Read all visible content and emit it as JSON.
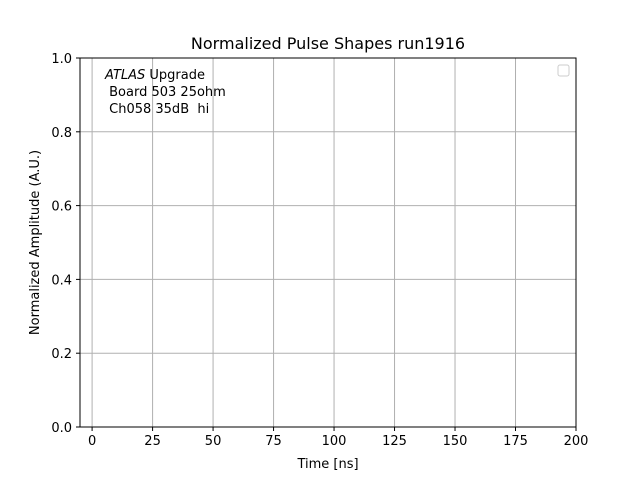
{
  "chart_data": {
    "type": "line",
    "title": "Normalized Pulse Shapes run1916",
    "xlabel": "Time [ns]",
    "ylabel": "Normalized Amplitude (A.U.)",
    "xlim": [
      -5,
      200
    ],
    "ylim": [
      0.0,
      1.0
    ],
    "xticks": [
      0,
      25,
      50,
      75,
      100,
      125,
      150,
      175,
      200
    ],
    "xtick_labels": [
      "0",
      "25",
      "50",
      "75",
      "100",
      "125",
      "150",
      "175",
      "200"
    ],
    "yticks": [
      0.0,
      0.2,
      0.4,
      0.6,
      0.8,
      1.0
    ],
    "ytick_labels": [
      "0.0",
      "0.2",
      "0.4",
      "0.6",
      "0.8",
      "1.0"
    ],
    "grid": true,
    "legend": "top-right",
    "series": [],
    "annotation": {
      "italic": "ATLAS",
      "rest": " Upgrade",
      "line2": " Board 503 25ohm",
      "line3": " Ch058 35dB  hi"
    }
  },
  "colors": {
    "grid": "#b0b0b0",
    "axes": "#000000",
    "background": "#ffffff"
  }
}
